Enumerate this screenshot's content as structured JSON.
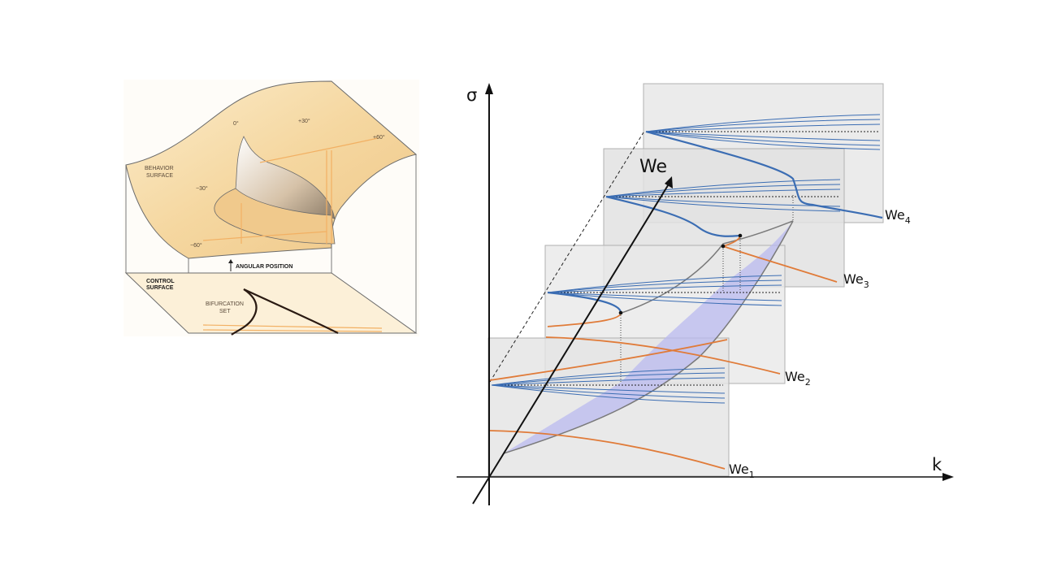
{
  "left_figure": {
    "behavior_surface_label_1": "BEHAVIOR",
    "behavior_surface_label_2": "SURFACE",
    "control_surface_label_1": "CONTROL",
    "control_surface_label_2": "SURFACE",
    "angular_position_label": "ANGULAR POSITION",
    "bifurcation_set_label_1": "BIFURCATION",
    "bifurcation_set_label_2": "SET",
    "angle_labels": [
      "0°",
      "+30°",
      "+60°",
      "−30°",
      "−60°"
    ]
  },
  "right_figure": {
    "axis_sigma": "σ",
    "axis_k": "k",
    "axis_we": "We",
    "planes": [
      {
        "base": "We",
        "sub": "1"
      },
      {
        "base": "We",
        "sub": "2"
      },
      {
        "base": "We",
        "sub": "3"
      },
      {
        "base": "We",
        "sub": "4"
      }
    ],
    "colors": {
      "stable_branch": "#3b6db3",
      "unstable_branch": "#e07b39",
      "cusp_region": "#b9b9ef",
      "plane_fill": "#d9d9d9"
    }
  }
}
